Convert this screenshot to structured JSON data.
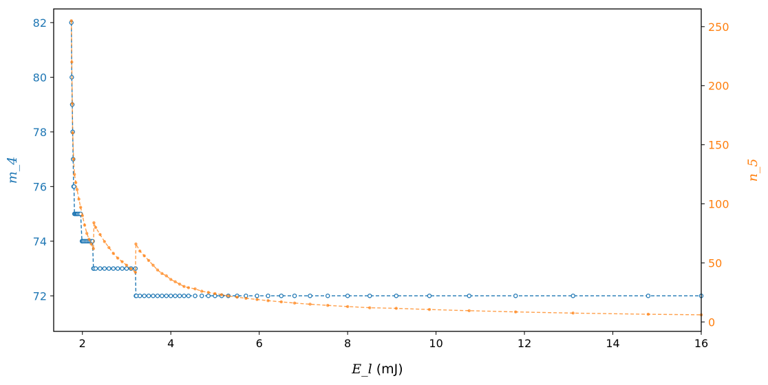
{
  "chart_data": {
    "type": "line",
    "dual_axis": true,
    "xlabel": "E_l",
    "xunit": "(mJ)",
    "xlim": [
      1.35,
      16
    ],
    "xticks": [
      2,
      4,
      6,
      8,
      10,
      12,
      14,
      16
    ],
    "left_axis": {
      "label": "m_4",
      "color": "#1f77b4",
      "ylim": [
        70.7,
        82.5
      ],
      "ticks": [
        72,
        74,
        76,
        78,
        80,
        82
      ]
    },
    "right_axis": {
      "label": "n_5",
      "color": "#ff7f0e",
      "ylim": [
        -8,
        265
      ],
      "ticks": [
        0,
        50,
        100,
        150,
        200,
        250
      ]
    },
    "series": [
      {
        "axis": "left",
        "color": "#1f77b4",
        "line_style": "dashed",
        "marker": "hollow-circle",
        "x": [
          1.75,
          1.76,
          1.77,
          1.78,
          1.79,
          1.8,
          1.81,
          1.82,
          1.84,
          1.86,
          1.88,
          1.9,
          1.93,
          1.96,
          1.99,
          2.0,
          2.02,
          2.05,
          2.08,
          2.11,
          2.14,
          2.17,
          2.2,
          2.23,
          2.25,
          2.26,
          2.3,
          2.4,
          2.5,
          2.6,
          2.7,
          2.8,
          2.9,
          3.0,
          3.1,
          3.2,
          3.21,
          3.22,
          3.3,
          3.4,
          3.5,
          3.6,
          3.7,
          3.8,
          3.9,
          4.0,
          4.1,
          4.2,
          4.3,
          4.4,
          4.55,
          4.7,
          4.85,
          5.0,
          5.15,
          5.3,
          5.5,
          5.7,
          5.95,
          6.2,
          6.5,
          6.8,
          7.15,
          7.55,
          8.0,
          8.5,
          9.1,
          9.85,
          10.75,
          11.8,
          13.1,
          14.8,
          16.0
        ],
        "y": [
          82,
          80,
          79,
          78,
          77,
          76,
          76,
          75,
          75,
          75,
          75,
          75,
          75,
          75,
          74,
          74,
          74,
          74,
          74,
          74,
          74,
          74,
          74,
          74,
          73,
          73,
          73,
          73,
          73,
          73,
          73,
          73,
          73,
          73,
          73,
          73,
          72,
          72,
          72,
          72,
          72,
          72,
          72,
          72,
          72,
          72,
          72,
          72,
          72,
          72,
          72,
          72,
          72,
          72,
          72,
          72,
          72,
          72,
          72,
          72,
          72,
          72,
          72,
          72,
          72,
          72,
          72,
          72,
          72,
          72,
          72,
          72,
          72
        ]
      },
      {
        "axis": "right",
        "color": "#ff7f0e",
        "line_style": "dashed",
        "marker": "filled-dot",
        "x": [
          1.75,
          1.76,
          1.77,
          1.78,
          1.8,
          1.82,
          1.85,
          1.88,
          1.92,
          1.96,
          2.0,
          2.05,
          2.1,
          2.15,
          2.2,
          2.25,
          2.26,
          2.3,
          2.4,
          2.5,
          2.6,
          2.7,
          2.8,
          2.9,
          3.0,
          3.1,
          3.2,
          3.21,
          3.3,
          3.4,
          3.5,
          3.6,
          3.7,
          3.8,
          3.9,
          4.0,
          4.1,
          4.2,
          4.3,
          4.4,
          4.55,
          4.7,
          4.85,
          5.0,
          5.15,
          5.3,
          5.5,
          5.7,
          5.95,
          6.2,
          6.5,
          6.8,
          7.15,
          7.55,
          8.0,
          8.5,
          9.1,
          9.85,
          10.75,
          11.8,
          13.1,
          14.8,
          16.0
        ],
        "y": [
          255,
          220,
          185,
          160,
          138,
          125,
          118,
          112,
          104,
          97,
          90,
          82,
          75,
          70,
          66,
          62,
          84,
          80,
          74,
          68,
          63,
          58,
          54,
          51,
          48,
          45,
          42,
          66,
          60,
          56,
          52,
          48,
          44,
          41,
          39,
          36,
          34,
          32,
          30,
          29,
          28,
          26,
          25,
          24,
          23,
          22,
          21,
          20,
          19,
          18,
          17,
          16,
          15,
          14,
          13,
          12,
          11.5,
          10.5,
          9.5,
          8.5,
          7.5,
          6.5,
          6
        ]
      }
    ]
  }
}
